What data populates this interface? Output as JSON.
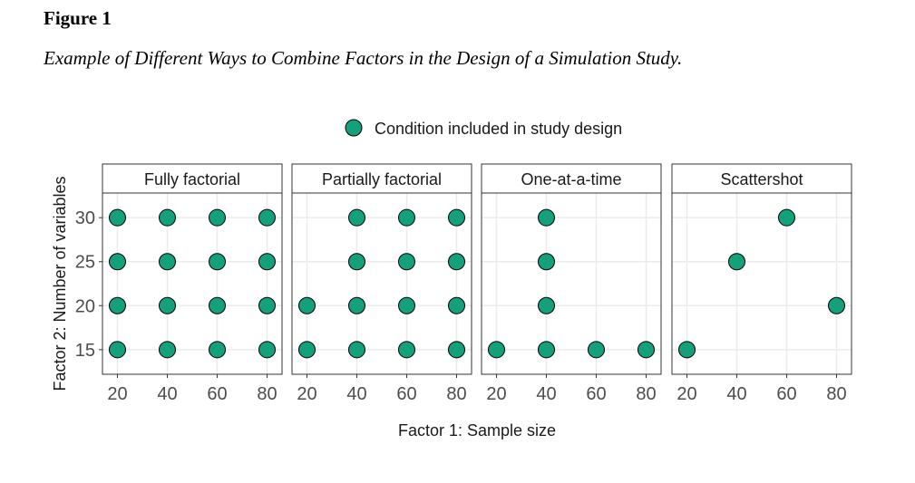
{
  "figure": {
    "label": "Figure 1",
    "title": "Example of Different Ways to Combine Factors in the Design of a Simulation Study."
  },
  "chart_data": {
    "type": "scatter",
    "legend": {
      "label": "Condition included in study design",
      "position": "top"
    },
    "xlabel": "Factor 1: Sample size",
    "ylabel": "Factor 2: Number of variables",
    "x_ticks": [
      20,
      40,
      60,
      80
    ],
    "y_ticks": [
      15,
      20,
      25,
      30
    ],
    "xlim": [
      14,
      86
    ],
    "ylim": [
      12.2,
      32.8
    ],
    "grid": true,
    "point_color": "#13a07b",
    "panels": [
      {
        "title": "Fully factorial",
        "points": [
          [
            20,
            15
          ],
          [
            40,
            15
          ],
          [
            60,
            15
          ],
          [
            80,
            15
          ],
          [
            20,
            20
          ],
          [
            40,
            20
          ],
          [
            60,
            20
          ],
          [
            80,
            20
          ],
          [
            20,
            25
          ],
          [
            40,
            25
          ],
          [
            60,
            25
          ],
          [
            80,
            25
          ],
          [
            20,
            30
          ],
          [
            40,
            30
          ],
          [
            60,
            30
          ],
          [
            80,
            30
          ]
        ]
      },
      {
        "title": "Partially factorial",
        "points": [
          [
            20,
            15
          ],
          [
            40,
            15
          ],
          [
            60,
            15
          ],
          [
            80,
            15
          ],
          [
            20,
            20
          ],
          [
            40,
            20
          ],
          [
            60,
            20
          ],
          [
            80,
            20
          ],
          [
            40,
            25
          ],
          [
            60,
            25
          ],
          [
            80,
            25
          ],
          [
            40,
            30
          ],
          [
            60,
            30
          ],
          [
            80,
            30
          ]
        ]
      },
      {
        "title": "One-at-a-time",
        "points": [
          [
            20,
            15
          ],
          [
            40,
            15
          ],
          [
            60,
            15
          ],
          [
            80,
            15
          ],
          [
            40,
            20
          ],
          [
            40,
            25
          ],
          [
            40,
            30
          ]
        ]
      },
      {
        "title": "Scattershot",
        "points": [
          [
            20,
            15
          ],
          [
            40,
            25
          ],
          [
            60,
            30
          ],
          [
            80,
            20
          ]
        ]
      }
    ]
  }
}
